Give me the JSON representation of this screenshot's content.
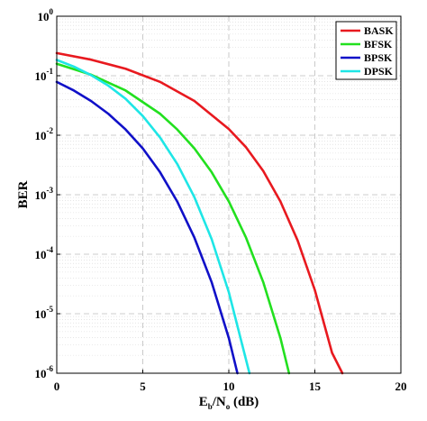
{
  "chart_data": {
    "type": "line",
    "xlabel": "E_b/N_o (dB)",
    "ylabel": "BER",
    "xlim": [
      0,
      20
    ],
    "ylim": [
      1e-06,
      1
    ],
    "yscale": "log",
    "grid": true,
    "legend_position": "top-right",
    "x_ticks": [
      "0",
      "5",
      "10",
      "15",
      "20"
    ],
    "y_ticks": [
      {
        "base": "10",
        "exp": "0"
      },
      {
        "base": "10",
        "exp": "-1"
      },
      {
        "base": "10",
        "exp": "-2"
      },
      {
        "base": "10",
        "exp": "-3"
      },
      {
        "base": "10",
        "exp": "-4"
      },
      {
        "base": "10",
        "exp": "-5"
      },
      {
        "base": "10",
        "exp": "-6"
      }
    ],
    "series": [
      {
        "name": "BASK",
        "color": "#e8191f",
        "x": [
          0,
          2,
          4,
          6,
          8,
          10,
          11,
          12,
          13,
          14,
          15,
          16,
          16.6
        ],
        "y": [
          0.24,
          0.186,
          0.131,
          0.0789,
          0.0377,
          0.0127,
          0.00628,
          0.00251,
          0.00077,
          0.00017,
          2.5e-05,
          2.2e-06,
          1e-06
        ]
      },
      {
        "name": "BFSK",
        "color": "#22e01f",
        "x": [
          0,
          2,
          4,
          6,
          7,
          8,
          9,
          10,
          11,
          12,
          13,
          13.5
        ],
        "y": [
          0.159,
          0.104,
          0.0565,
          0.023,
          0.0125,
          0.006,
          0.0024,
          0.00077,
          0.00019,
          3.4e-05,
          3.9e-06,
          1e-06
        ]
      },
      {
        "name": "BPSK",
        "color": "#1010c8",
        "x": [
          0,
          1,
          2,
          3,
          4,
          5,
          6,
          7,
          8,
          9,
          10,
          10.5
        ],
        "y": [
          0.0787,
          0.0563,
          0.0375,
          0.0229,
          0.0125,
          0.006,
          0.0024,
          0.00077,
          0.00019,
          3.4e-05,
          3.9e-06,
          1e-06
        ]
      },
      {
        "name": "DPSK",
        "color": "#1ee6e6",
        "x": [
          0,
          1,
          2,
          3,
          4,
          5,
          6,
          7,
          8,
          9,
          10,
          11.2
        ],
        "y": [
          0.184,
          0.142,
          0.102,
          0.068,
          0.041,
          0.021,
          0.0092,
          0.0033,
          0.00091,
          0.00018,
          2.3e-05,
          1e-06
        ]
      }
    ]
  }
}
